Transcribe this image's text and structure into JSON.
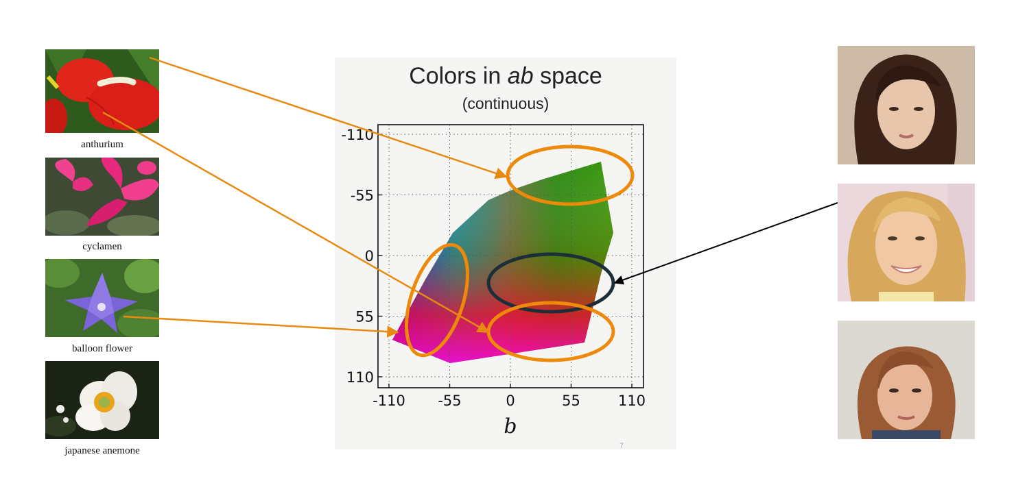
{
  "flowers": [
    {
      "name": "anthurium",
      "icon": "anthurium-photo"
    },
    {
      "name": "cyclamen",
      "icon": "cyclamen-photo"
    },
    {
      "name": "balloon flower",
      "icon": "balloon-flower-photo"
    },
    {
      "name": "japanese anemone",
      "icon": "japanese-anemone-photo"
    }
  ],
  "faces": [
    {
      "icon": "portrait-dark-hair-photo"
    },
    {
      "icon": "portrait-blonde-hair-photo"
    },
    {
      "icon": "portrait-brown-hair-photo"
    }
  ],
  "plot": {
    "title_prefix": "Colors in ",
    "title_emphasis": "ab",
    "title_suffix": " space",
    "subtitle": "(continuous)",
    "xlabel": "b",
    "x_ticks": [
      -110,
      -55,
      0,
      55,
      110
    ],
    "y_ticks": [
      -110,
      -55,
      0,
      55,
      110
    ],
    "xlim": [
      -110,
      110
    ],
    "ylim": [
      -110,
      110
    ],
    "y_inverted": true,
    "grid": true,
    "grid_style": "dotted"
  },
  "page_number": "7",
  "colors": {
    "highlight_orange": "#ee8a0a",
    "highlight_dark": "#1c2e38",
    "arrow_orange": "#e88a12",
    "arrow_black": "#000000"
  }
}
